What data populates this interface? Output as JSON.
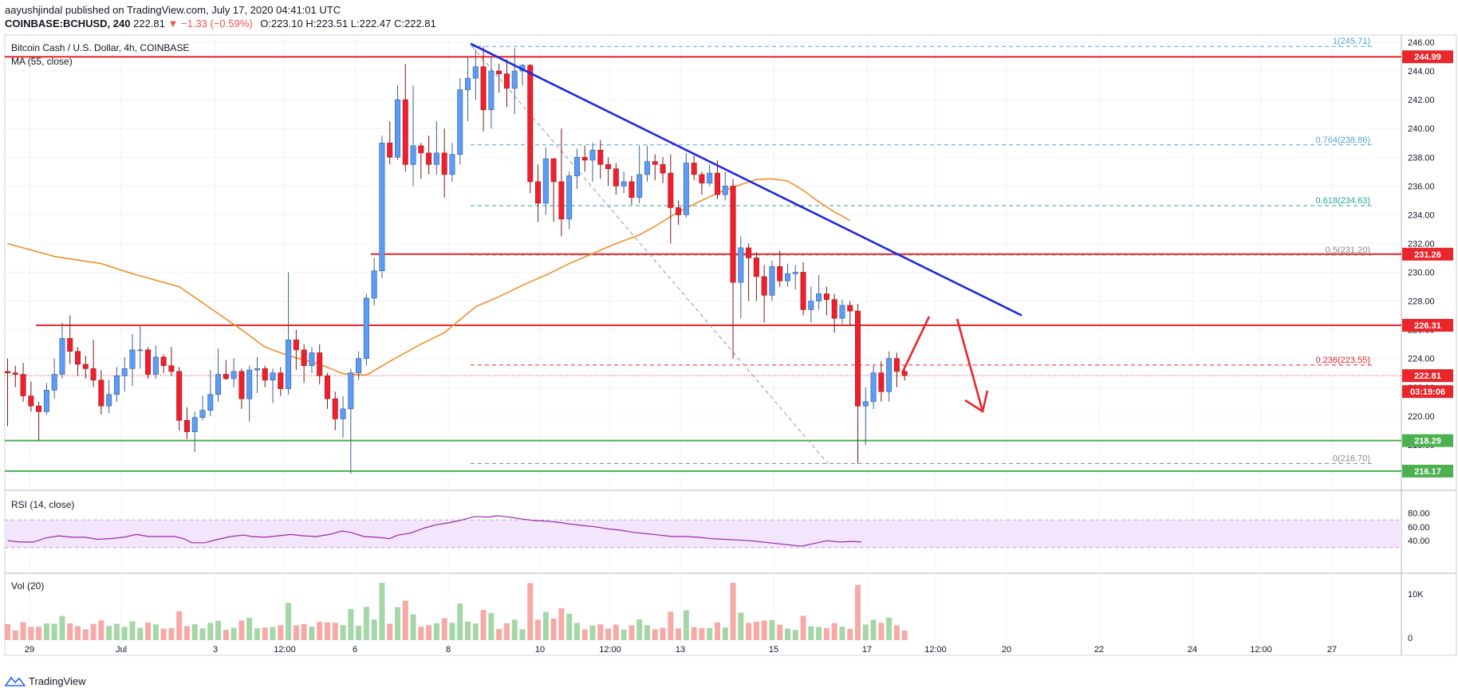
{
  "header": {
    "published": "aayushjindal published on TradingView.com, July 17, 2020 04:41:01 UTC",
    "symbol": "COINBASE:BCHUSD, 240",
    "last": "222.81",
    "change": "▼ −1.33 (−0.59%)",
    "open": "O:223.10",
    "high": "H:223.51",
    "low": "L:222.47",
    "close": "C:222.81"
  },
  "chart_title": "Bitcoin Cash / U.S. Dollar, 4h, COINBASE",
  "ma_label": "MA (55, close)",
  "rsi_label": "RSI (14, close)",
  "vol_label": "Vol (20)",
  "footer_brand": "TradingView",
  "colors": {
    "up": "#5b9cf6",
    "down": "#ef1f2e",
    "ma": "#f0902a",
    "trend": "#1f27e0",
    "resistance": "#e8262b",
    "support": "#4caf50",
    "fib": "#26a69a",
    "rsi": "#9c27b0",
    "annotation_arrow": "#e8262b"
  },
  "chart_data": {
    "type": "candlestick",
    "title": "Bitcoin Cash / U.S. Dollar, 4h, COINBASE",
    "x_tick_labels": [
      "29",
      "Jul",
      "3",
      "12:00",
      "6",
      "8",
      "10",
      "12:00",
      "13",
      "15",
      "17",
      "12:00",
      "20",
      "22",
      "24",
      "12:00",
      "27"
    ],
    "ylim": [
      215,
      246.5
    ],
    "price_ticks": [
      216,
      218,
      220,
      222,
      224,
      226,
      228,
      230,
      232,
      234,
      236,
      238,
      240,
      242,
      244,
      246
    ],
    "price_badges": [
      {
        "value": 244.99,
        "label": "244.99",
        "color": "#e8262b"
      },
      {
        "value": 231.26,
        "label": "231.26",
        "color": "#e8262b"
      },
      {
        "value": 226.31,
        "label": "226.31",
        "color": "#e8262b"
      },
      {
        "value": 222.81,
        "label": "222.81",
        "color": "#e8262b"
      },
      {
        "value": 221.7,
        "label": "03:19:06",
        "color": "#e8262b"
      },
      {
        "value": 218.29,
        "label": "218.29",
        "color": "#4caf50"
      },
      {
        "value": 216.17,
        "label": "216.17",
        "color": "#4caf50"
      }
    ],
    "horizontal_levels": [
      {
        "value": 244.99,
        "color": "#e8262b",
        "style": "solid"
      },
      {
        "value": 231.26,
        "color": "#e8262b",
        "style": "solid"
      },
      {
        "value": 226.31,
        "color": "#e8262b",
        "style": "solid"
      },
      {
        "value": 218.29,
        "color": "#4caf50",
        "style": "solid"
      },
      {
        "value": 216.17,
        "color": "#4caf50",
        "style": "solid"
      }
    ],
    "fibonacci": [
      {
        "label": "1(245.71)",
        "value": 245.71,
        "color": "#4da5d8"
      },
      {
        "label": "0.764(238.86)",
        "value": 238.86,
        "color": "#4da5d8"
      },
      {
        "label": "0.618(234.63)",
        "value": 234.63,
        "color": "#26a69a"
      },
      {
        "label": "0.5(231.20)",
        "value": 231.2,
        "color": "#888888"
      },
      {
        "label": "0.236(223.55)",
        "value": 223.55,
        "color": "#e8262b"
      },
      {
        "label": "0(216.70)",
        "value": 216.7,
        "color": "#888888"
      }
    ],
    "candles": [
      [
        223.1,
        223.0,
        224.0,
        219.3
      ],
      [
        223.0,
        222.9,
        223.5,
        222.0
      ],
      [
        222.9,
        221.4,
        223.7,
        221.0
      ],
      [
        221.4,
        220.7,
        222.4,
        220.3
      ],
      [
        220.7,
        220.3,
        221.0,
        218.3
      ],
      [
        220.3,
        221.8,
        222.3,
        220.1
      ],
      [
        221.8,
        222.9,
        224.0,
        221.2
      ],
      [
        222.9,
        225.4,
        226.5,
        222.6
      ],
      [
        225.4,
        224.5,
        227.0,
        223.6
      ],
      [
        224.5,
        223.6,
        224.8,
        222.8
      ],
      [
        223.6,
        223.3,
        224.2,
        222.6
      ],
      [
        223.3,
        222.5,
        225.3,
        222.0
      ],
      [
        222.5,
        220.7,
        223.2,
        220.1
      ],
      [
        220.7,
        221.5,
        222.5,
        220.2
      ],
      [
        221.5,
        222.8,
        223.4,
        221.0
      ],
      [
        222.8,
        223.3,
        224.1,
        221.7
      ],
      [
        223.3,
        224.6,
        225.7,
        222.1
      ],
      [
        224.6,
        224.6,
        226.3,
        223.3
      ],
      [
        224.6,
        222.9,
        224.8,
        222.6
      ],
      [
        222.9,
        224.1,
        224.9,
        222.6
      ],
      [
        224.1,
        223.5,
        224.3,
        223.0
      ],
      [
        223.5,
        223.1,
        224.8,
        222.8
      ],
      [
        223.1,
        219.7,
        223.4,
        219.0
      ],
      [
        219.7,
        218.9,
        220.6,
        218.4
      ],
      [
        218.9,
        219.9,
        220.3,
        217.5
      ],
      [
        219.9,
        220.4,
        221.4,
        219.7
      ],
      [
        220.4,
        221.5,
        223.2,
        220.0
      ],
      [
        221.5,
        222.9,
        224.7,
        221.0
      ],
      [
        222.9,
        222.6,
        223.9,
        222.5
      ],
      [
        222.6,
        223.1,
        224.0,
        222.0
      ],
      [
        223.1,
        221.2,
        223.3,
        220.5
      ],
      [
        221.2,
        223.2,
        223.5,
        219.6
      ],
      [
        223.2,
        223.3,
        224.1,
        221.6
      ],
      [
        223.3,
        222.5,
        223.5,
        222.0
      ],
      [
        222.5,
        223.0,
        223.3,
        220.9
      ],
      [
        223.0,
        221.9,
        223.4,
        221.4
      ],
      [
        221.9,
        225.3,
        230.0,
        221.5
      ],
      [
        225.3,
        224.6,
        226.0,
        223.2
      ],
      [
        224.6,
        223.5,
        225.0,
        222.3
      ],
      [
        223.5,
        224.4,
        224.8,
        223.0
      ],
      [
        224.4,
        222.8,
        225.0,
        222.2
      ],
      [
        222.8,
        221.2,
        223.0,
        220.5
      ],
      [
        221.2,
        219.8,
        221.7,
        219.0
      ],
      [
        219.8,
        220.5,
        221.4,
        218.5
      ],
      [
        220.5,
        223.0,
        223.3,
        216.0
      ],
      [
        223.0,
        224.0,
        224.5,
        222.5
      ],
      [
        224.0,
        228.2,
        228.5,
        223.5
      ],
      [
        228.2,
        230.1,
        231.0,
        227.7
      ],
      [
        230.1,
        239.0,
        239.5,
        229.6
      ],
      [
        239.0,
        238.0,
        240.5,
        237.5
      ],
      [
        238.0,
        242.0,
        243.0,
        237.8
      ],
      [
        242.0,
        237.5,
        244.5,
        237.0
      ],
      [
        237.5,
        238.8,
        243.0,
        236.0
      ],
      [
        238.8,
        238.3,
        239.0,
        236.5
      ],
      [
        238.3,
        237.5,
        239.5,
        236.8
      ],
      [
        237.5,
        238.3,
        240.5,
        236.8
      ],
      [
        238.3,
        236.8,
        240.0,
        235.2
      ],
      [
        236.8,
        238.2,
        239.0,
        236.3
      ],
      [
        238.2,
        242.7,
        243.5,
        237.5
      ],
      [
        242.7,
        243.5,
        245.0,
        240.5
      ],
      [
        243.5,
        244.3,
        245.5,
        242.0
      ],
      [
        244.3,
        241.3,
        245.7,
        239.8
      ],
      [
        241.3,
        244.0,
        245.0,
        240.0
      ],
      [
        244.0,
        243.8,
        244.5,
        242.5
      ],
      [
        243.8,
        242.8,
        244.8,
        241.5
      ],
      [
        242.8,
        244.0,
        245.6,
        241.0
      ],
      [
        244.0,
        244.4,
        244.5,
        243.0
      ],
      [
        244.4,
        236.3,
        244.5,
        235.5
      ],
      [
        236.3,
        234.8,
        237.5,
        233.5
      ],
      [
        234.8,
        237.9,
        238.7,
        234.0
      ],
      [
        237.9,
        236.3,
        237.9,
        233.5
      ],
      [
        236.3,
        233.7,
        240.0,
        232.5
      ],
      [
        233.7,
        236.7,
        237.0,
        233.0
      ],
      [
        236.7,
        238.0,
        238.6,
        235.8
      ],
      [
        238.0,
        237.8,
        238.8,
        237.0
      ],
      [
        237.8,
        238.5,
        239.0,
        236.3
      ],
      [
        238.5,
        237.5,
        239.2,
        236.5
      ],
      [
        237.5,
        237.2,
        238.0,
        236.0
      ],
      [
        237.2,
        236.0,
        237.6,
        235.4
      ],
      [
        236.0,
        236.3,
        237.0,
        235.5
      ],
      [
        236.3,
        235.2,
        236.7,
        234.7
      ],
      [
        235.2,
        236.8,
        238.8,
        234.8
      ],
      [
        236.8,
        237.7,
        238.8,
        236.3
      ],
      [
        237.7,
        237.5,
        238.2,
        236.4
      ],
      [
        237.5,
        236.9,
        238.0,
        236.2
      ],
      [
        236.9,
        234.5,
        238.2,
        232.0
      ],
      [
        234.5,
        234.0,
        235.0,
        233.3
      ],
      [
        234.0,
        237.6,
        238.3,
        233.8
      ],
      [
        237.6,
        236.8,
        238.1,
        236.4
      ],
      [
        236.8,
        236.2,
        237.0,
        235.4
      ],
      [
        236.2,
        236.9,
        237.5,
        236.0
      ],
      [
        236.9,
        235.4,
        237.8,
        235.1
      ],
      [
        235.4,
        236.0,
        237.0,
        235.0
      ],
      [
        236.0,
        229.3,
        236.5,
        224.0
      ],
      [
        229.3,
        231.7,
        232.5,
        226.8
      ],
      [
        231.7,
        231.0,
        232.0,
        228.0
      ],
      [
        231.0,
        229.7,
        231.4,
        228.0
      ],
      [
        229.7,
        228.4,
        230.5,
        226.5
      ],
      [
        228.4,
        230.4,
        230.8,
        228.0
      ],
      [
        230.4,
        229.4,
        231.5,
        229.0
      ],
      [
        229.4,
        229.9,
        230.6,
        229.0
      ],
      [
        229.9,
        230.0,
        230.5,
        228.8
      ],
      [
        230.0,
        227.4,
        230.7,
        227.0
      ],
      [
        227.4,
        228.0,
        229.0,
        226.5
      ],
      [
        228.0,
        228.5,
        229.8,
        227.4
      ],
      [
        228.5,
        228.1,
        229.0,
        227.0
      ],
      [
        228.1,
        226.8,
        228.5,
        225.8
      ],
      [
        226.8,
        227.7,
        228.1,
        226.4
      ],
      [
        227.7,
        227.3,
        228.0,
        226.3
      ],
      [
        227.3,
        220.7,
        227.8,
        216.7
      ],
      [
        220.7,
        221.0,
        222.0,
        218.0
      ],
      [
        221.0,
        223.0,
        223.5,
        220.5
      ],
      [
        223.0,
        221.7,
        223.8,
        221.0
      ],
      [
        221.7,
        224.0,
        224.5,
        221.0
      ],
      [
        224.0,
        223.1,
        224.4,
        222.0
      ],
      [
        223.1,
        222.81,
        223.51,
        222.47
      ]
    ],
    "ma55": [
      [
        0,
        232.0
      ],
      [
        6,
        231.1
      ],
      [
        12,
        230.6
      ],
      [
        16,
        229.9
      ],
      [
        22,
        229.0
      ],
      [
        26,
        227.5
      ],
      [
        30,
        226.0
      ],
      [
        33,
        224.8
      ],
      [
        36,
        224.2
      ],
      [
        40,
        223.6
      ],
      [
        43,
        222.95
      ],
      [
        46,
        222.85
      ],
      [
        49,
        223.8
      ],
      [
        53,
        225.0
      ],
      [
        56,
        225.8
      ],
      [
        60,
        227.6
      ],
      [
        63,
        228.3
      ],
      [
        66,
        229.1
      ],
      [
        69,
        229.8
      ],
      [
        72,
        230.6
      ],
      [
        75,
        231.3
      ],
      [
        78,
        232.0
      ],
      [
        81,
        232.6
      ],
      [
        83,
        233.2
      ],
      [
        86,
        234.2
      ],
      [
        89,
        235.0
      ],
      [
        91,
        235.5
      ],
      [
        94,
        236.1
      ],
      [
        96,
        236.45
      ],
      [
        98,
        236.5
      ],
      [
        100,
        236.35
      ],
      [
        102,
        235.7
      ],
      [
        104,
        234.9
      ],
      [
        106,
        234.2
      ],
      [
        108,
        233.6
      ]
    ],
    "rsi": [
      [
        0,
        40
      ],
      [
        3,
        38
      ],
      [
        6,
        38
      ],
      [
        9,
        44
      ],
      [
        12,
        47
      ],
      [
        15,
        45
      ],
      [
        18,
        45
      ],
      [
        21,
        42
      ],
      [
        24,
        43
      ],
      [
        27,
        45
      ],
      [
        30,
        49
      ],
      [
        33,
        46
      ],
      [
        36,
        46
      ],
      [
        39,
        46
      ],
      [
        41,
        43
      ],
      [
        43,
        37
      ],
      [
        46,
        37
      ],
      [
        49,
        42
      ],
      [
        52,
        46
      ],
      [
        55,
        48
      ],
      [
        57,
        46
      ],
      [
        60,
        45
      ],
      [
        63,
        47
      ],
      [
        66,
        49
      ],
      [
        69,
        47
      ],
      [
        72,
        46
      ],
      [
        75,
        49
      ],
      [
        78,
        54
      ],
      [
        80,
        52
      ],
      [
        83,
        46
      ],
      [
        86,
        45
      ],
      [
        89,
        43
      ],
      [
        91,
        48
      ],
      [
        94,
        51
      ],
      [
        97,
        58
      ],
      [
        100,
        63
      ],
      [
        103,
        66
      ],
      [
        106,
        70
      ],
      [
        109,
        75
      ],
      [
        112,
        74
      ],
      [
        114,
        76
      ],
      [
        117,
        74
      ],
      [
        120,
        71
      ],
      [
        123,
        69
      ],
      [
        126,
        68
      ],
      [
        129,
        66
      ],
      [
        131,
        64
      ],
      [
        134,
        62
      ],
      [
        137,
        60
      ],
      [
        140,
        57
      ],
      [
        143,
        55
      ],
      [
        146,
        52
      ],
      [
        149,
        50
      ],
      [
        152,
        48
      ],
      [
        155,
        46
      ],
      [
        158,
        46
      ],
      [
        161,
        45
      ],
      [
        164,
        43
      ],
      [
        167,
        42
      ],
      [
        170,
        41
      ],
      [
        173,
        40
      ],
      [
        176,
        38
      ],
      [
        179,
        36
      ],
      [
        182,
        34
      ],
      [
        185,
        32
      ],
      [
        188,
        36
      ],
      [
        191,
        40
      ],
      [
        194,
        38
      ],
      [
        197,
        39
      ],
      [
        199,
        38
      ]
    ],
    "rsi_ticks": [
      40,
      60,
      80
    ],
    "volume_ticks": [
      "0",
      "10K"
    ]
  }
}
